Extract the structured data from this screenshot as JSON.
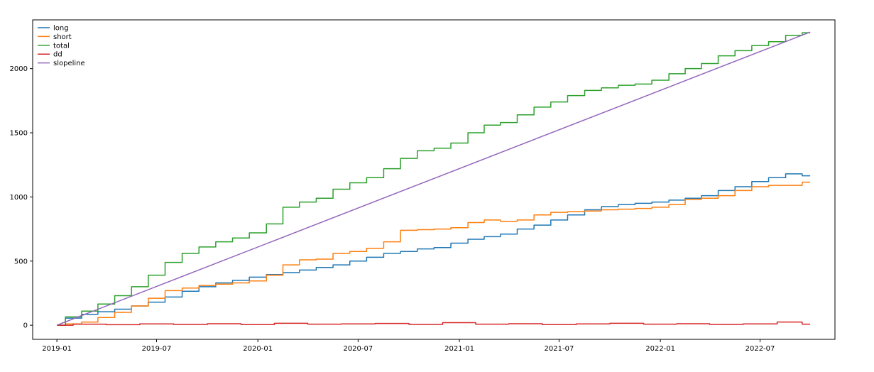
{
  "chart_data": {
    "type": "line",
    "xlabel": "",
    "ylabel": "",
    "x_range": [
      "2018-11-18",
      "2022-11-14"
    ],
    "ylim": [
      -110,
      2380
    ],
    "x_ticks": [
      {
        "date": "2019-01-01",
        "label": "2019-01"
      },
      {
        "date": "2019-07-01",
        "label": "2019-07"
      },
      {
        "date": "2020-01-01",
        "label": "2020-01"
      },
      {
        "date": "2020-07-01",
        "label": "2020-07"
      },
      {
        "date": "2021-01-01",
        "label": "2021-01"
      },
      {
        "date": "2021-07-01",
        "label": "2021-07"
      },
      {
        "date": "2022-01-01",
        "label": "2022-01"
      },
      {
        "date": "2022-07-01",
        "label": "2022-07"
      }
    ],
    "y_ticks": [
      {
        "value": 0,
        "label": "0"
      },
      {
        "value": 500,
        "label": "500"
      },
      {
        "value": 1000,
        "label": "1000"
      },
      {
        "value": 1500,
        "label": "1500"
      },
      {
        "value": 2000,
        "label": "2000"
      }
    ],
    "grid": false,
    "legend_position": "top-left",
    "series": [
      {
        "name": "long",
        "color": "#1f77b4",
        "x": [
          "2019-01-01",
          "2019-02-01",
          "2019-03-01",
          "2019-04-01",
          "2019-05-01",
          "2019-06-01",
          "2019-07-01",
          "2019-08-01",
          "2019-09-01",
          "2019-10-01",
          "2019-11-01",
          "2019-12-01",
          "2020-01-01",
          "2020-02-01",
          "2020-03-01",
          "2020-04-01",
          "2020-05-01",
          "2020-06-01",
          "2020-07-01",
          "2020-08-01",
          "2020-09-01",
          "2020-10-01",
          "2020-11-01",
          "2020-12-01",
          "2021-01-01",
          "2021-02-01",
          "2021-03-01",
          "2021-04-01",
          "2021-05-01",
          "2021-06-01",
          "2021-07-01",
          "2021-08-01",
          "2021-09-01",
          "2021-10-01",
          "2021-11-01",
          "2021-12-01",
          "2022-01-01",
          "2022-02-01",
          "2022-03-01",
          "2022-04-01",
          "2022-05-01",
          "2022-06-01",
          "2022-07-01",
          "2022-08-01",
          "2022-09-01",
          "2022-09-30"
        ],
        "y": [
          0,
          55,
          85,
          105,
          125,
          150,
          180,
          220,
          265,
          300,
          330,
          350,
          375,
          395,
          410,
          430,
          450,
          470,
          500,
          530,
          560,
          575,
          595,
          605,
          640,
          670,
          690,
          710,
          750,
          780,
          820,
          860,
          900,
          925,
          940,
          950,
          960,
          975,
          990,
          1010,
          1050,
          1080,
          1120,
          1150,
          1180,
          1165
        ]
      },
      {
        "name": "short",
        "color": "#ff7f0e",
        "x": [
          "2019-01-01",
          "2019-02-01",
          "2019-03-01",
          "2019-04-01",
          "2019-05-01",
          "2019-06-01",
          "2019-07-01",
          "2019-08-01",
          "2019-09-01",
          "2019-10-01",
          "2019-11-01",
          "2019-12-01",
          "2020-01-01",
          "2020-02-01",
          "2020-03-01",
          "2020-04-01",
          "2020-05-01",
          "2020-06-01",
          "2020-07-01",
          "2020-08-01",
          "2020-09-01",
          "2020-10-01",
          "2020-11-01",
          "2020-12-01",
          "2021-01-01",
          "2021-02-01",
          "2021-03-01",
          "2021-04-01",
          "2021-05-01",
          "2021-06-01",
          "2021-07-01",
          "2021-08-01",
          "2021-09-01",
          "2021-10-01",
          "2021-11-01",
          "2021-12-01",
          "2022-01-01",
          "2022-02-01",
          "2022-03-01",
          "2022-04-01",
          "2022-05-01",
          "2022-06-01",
          "2022-07-01",
          "2022-08-01",
          "2022-09-01",
          "2022-09-30"
        ],
        "y": [
          0,
          10,
          25,
          60,
          100,
          150,
          210,
          270,
          290,
          310,
          320,
          330,
          345,
          390,
          470,
          510,
          515,
          560,
          575,
          600,
          650,
          740,
          745,
          750,
          760,
          800,
          820,
          810,
          820,
          860,
          880,
          885,
          890,
          900,
          905,
          910,
          920,
          940,
          980,
          990,
          1010,
          1050,
          1080,
          1090,
          1090,
          1115
        ]
      },
      {
        "name": "total",
        "color": "#2ca02c",
        "x": [
          "2019-01-01",
          "2019-02-01",
          "2019-03-01",
          "2019-04-01",
          "2019-05-01",
          "2019-06-01",
          "2019-07-01",
          "2019-08-01",
          "2019-09-01",
          "2019-10-01",
          "2019-11-01",
          "2019-12-01",
          "2020-01-01",
          "2020-02-01",
          "2020-03-01",
          "2020-04-01",
          "2020-05-01",
          "2020-06-01",
          "2020-07-01",
          "2020-08-01",
          "2020-09-01",
          "2020-10-01",
          "2020-11-01",
          "2020-12-01",
          "2021-01-01",
          "2021-02-01",
          "2021-03-01",
          "2021-04-01",
          "2021-05-01",
          "2021-06-01",
          "2021-07-01",
          "2021-08-01",
          "2021-09-01",
          "2021-10-01",
          "2021-11-01",
          "2021-12-01",
          "2022-01-01",
          "2022-02-01",
          "2022-03-01",
          "2022-04-01",
          "2022-05-01",
          "2022-06-01",
          "2022-07-01",
          "2022-08-01",
          "2022-09-01",
          "2022-09-30"
        ],
        "y": [
          0,
          65,
          110,
          165,
          230,
          300,
          390,
          490,
          560,
          610,
          650,
          680,
          720,
          790,
          920,
          960,
          990,
          1060,
          1110,
          1150,
          1220,
          1300,
          1360,
          1380,
          1420,
          1500,
          1560,
          1580,
          1640,
          1700,
          1740,
          1790,
          1830,
          1850,
          1870,
          1880,
          1910,
          1960,
          2000,
          2040,
          2100,
          2140,
          2180,
          2210,
          2260,
          2280
        ]
      },
      {
        "name": "dd",
        "color": "#d62728",
        "x": [
          "2019-01-01",
          "2019-03-01",
          "2019-05-01",
          "2019-07-01",
          "2019-09-01",
          "2019-11-01",
          "2020-01-01",
          "2020-03-01",
          "2020-05-01",
          "2020-07-01",
          "2020-09-01",
          "2020-11-01",
          "2021-01-01",
          "2021-03-01",
          "2021-05-01",
          "2021-07-01",
          "2021-09-01",
          "2021-11-01",
          "2022-01-01",
          "2022-03-01",
          "2022-05-01",
          "2022-07-01",
          "2022-09-01",
          "2022-09-30"
        ],
        "y": [
          0,
          8,
          4,
          10,
          6,
          12,
          5,
          15,
          8,
          10,
          14,
          6,
          20,
          8,
          12,
          5,
          10,
          15,
          8,
          12,
          6,
          10,
          25,
          8
        ]
      },
      {
        "name": "slopeline",
        "color": "#9467bd",
        "x": [
          "2019-01-01",
          "2022-09-30"
        ],
        "y": [
          0,
          2285
        ]
      }
    ]
  }
}
